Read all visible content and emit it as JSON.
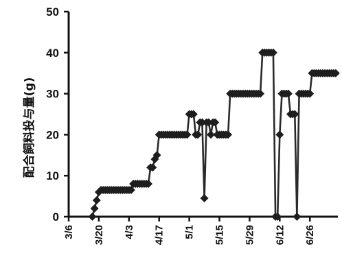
{
  "chart_data": {
    "type": "line",
    "title": "",
    "ylabel": "配合飼料投与量(g)",
    "xlabel": "",
    "x_tick_labels": [
      "3/6",
      "3/20",
      "4/3",
      "4/17",
      "5/1",
      "5/15",
      "5/29",
      "6/12",
      "6/26"
    ],
    "y_tick_labels": [
      "0",
      "10",
      "20",
      "30",
      "40",
      "50"
    ],
    "ylim": [
      0,
      50
    ],
    "xlim": [
      "3/6",
      "7/9"
    ],
    "grid": false,
    "legend": "none",
    "series": [
      {
        "color": "#1e1e1e",
        "marker": "diamond",
        "points": [
          {
            "x": "3/17",
            "y": 0
          },
          {
            "x": "3/18",
            "y": 2
          },
          {
            "x": "3/19",
            "y": 4
          },
          {
            "x": "3/20",
            "y": 6
          },
          {
            "x": "3/21",
            "y": 6.5
          },
          {
            "x": "3/22",
            "y": 6.5
          },
          {
            "x": "3/23",
            "y": 6.5
          },
          {
            "x": "3/24",
            "y": 6.5
          },
          {
            "x": "3/25",
            "y": 6.5
          },
          {
            "x": "3/26",
            "y": 6.5
          },
          {
            "x": "3/27",
            "y": 6.5
          },
          {
            "x": "3/28",
            "y": 6.5
          },
          {
            "x": "3/29",
            "y": 6.5
          },
          {
            "x": "3/30",
            "y": 6.5
          },
          {
            "x": "3/31",
            "y": 6.5
          },
          {
            "x": "4/1",
            "y": 6.5
          },
          {
            "x": "4/2",
            "y": 6.5
          },
          {
            "x": "4/3",
            "y": 6.5
          },
          {
            "x": "4/4",
            "y": 6.5
          },
          {
            "x": "4/5",
            "y": 8
          },
          {
            "x": "4/6",
            "y": 8
          },
          {
            "x": "4/7",
            "y": 8
          },
          {
            "x": "4/8",
            "y": 8
          },
          {
            "x": "4/9",
            "y": 8
          },
          {
            "x": "4/10",
            "y": 8
          },
          {
            "x": "4/11",
            "y": 8
          },
          {
            "x": "4/12",
            "y": 8
          },
          {
            "x": "4/13",
            "y": 12
          },
          {
            "x": "4/14",
            "y": 12
          },
          {
            "x": "4/15",
            "y": 14
          },
          {
            "x": "4/16",
            "y": 15
          },
          {
            "x": "4/17",
            "y": 20
          },
          {
            "x": "4/18",
            "y": 20
          },
          {
            "x": "4/19",
            "y": 20
          },
          {
            "x": "4/20",
            "y": 20
          },
          {
            "x": "4/21",
            "y": 20
          },
          {
            "x": "4/22",
            "y": 20
          },
          {
            "x": "4/23",
            "y": 20
          },
          {
            "x": "4/24",
            "y": 20
          },
          {
            "x": "4/25",
            "y": 20
          },
          {
            "x": "4/26",
            "y": 20
          },
          {
            "x": "4/27",
            "y": 20
          },
          {
            "x": "4/28",
            "y": 20
          },
          {
            "x": "4/29",
            "y": 20
          },
          {
            "x": "4/30",
            "y": 20
          },
          {
            "x": "5/1",
            "y": 25
          },
          {
            "x": "5/2",
            "y": 25
          },
          {
            "x": "5/3",
            "y": 25
          },
          {
            "x": "5/4",
            "y": 20
          },
          {
            "x": "5/5",
            "y": 20
          },
          {
            "x": "5/6",
            "y": 23
          },
          {
            "x": "5/7",
            "y": 23
          },
          {
            "x": "5/8",
            "y": 4.5
          },
          {
            "x": "5/9",
            "y": 23
          },
          {
            "x": "5/10",
            "y": 23
          },
          {
            "x": "5/11",
            "y": 20
          },
          {
            "x": "5/12",
            "y": 23
          },
          {
            "x": "5/13",
            "y": 23
          },
          {
            "x": "5/14",
            "y": 20
          },
          {
            "x": "5/15",
            "y": 20
          },
          {
            "x": "5/16",
            "y": 20
          },
          {
            "x": "5/17",
            "y": 20
          },
          {
            "x": "5/18",
            "y": 20
          },
          {
            "x": "5/19",
            "y": 20
          },
          {
            "x": "5/20",
            "y": 30
          },
          {
            "x": "5/21",
            "y": 30
          },
          {
            "x": "5/22",
            "y": 30
          },
          {
            "x": "5/23",
            "y": 30
          },
          {
            "x": "5/24",
            "y": 30
          },
          {
            "x": "5/25",
            "y": 30
          },
          {
            "x": "5/26",
            "y": 30
          },
          {
            "x": "5/27",
            "y": 30
          },
          {
            "x": "5/28",
            "y": 30
          },
          {
            "x": "5/29",
            "y": 30
          },
          {
            "x": "5/30",
            "y": 30
          },
          {
            "x": "5/31",
            "y": 30
          },
          {
            "x": "6/1",
            "y": 30
          },
          {
            "x": "6/2",
            "y": 30
          },
          {
            "x": "6/3",
            "y": 30
          },
          {
            "x": "6/4",
            "y": 40
          },
          {
            "x": "6/5",
            "y": 40
          },
          {
            "x": "6/6",
            "y": 40
          },
          {
            "x": "6/7",
            "y": 40
          },
          {
            "x": "6/8",
            "y": 40
          },
          {
            "x": "6/9",
            "y": 40
          },
          {
            "x": "6/10",
            "y": 0
          },
          {
            "x": "6/11",
            "y": 0
          },
          {
            "x": "6/12",
            "y": 20
          },
          {
            "x": "6/13",
            "y": 30
          },
          {
            "x": "6/14",
            "y": 30
          },
          {
            "x": "6/15",
            "y": 30
          },
          {
            "x": "6/16",
            "y": 30
          },
          {
            "x": "6/17",
            "y": 25
          },
          {
            "x": "6/18",
            "y": 25
          },
          {
            "x": "6/19",
            "y": 25
          },
          {
            "x": "6/20",
            "y": 0
          },
          {
            "x": "6/21",
            "y": 30
          },
          {
            "x": "6/22",
            "y": 30
          },
          {
            "x": "6/23",
            "y": 30
          },
          {
            "x": "6/24",
            "y": 30
          },
          {
            "x": "6/25",
            "y": 30
          },
          {
            "x": "6/26",
            "y": 30
          },
          {
            "x": "6/27",
            "y": 35
          },
          {
            "x": "6/28",
            "y": 35
          },
          {
            "x": "6/29",
            "y": 35
          },
          {
            "x": "6/30",
            "y": 35
          },
          {
            "x": "7/1",
            "y": 35
          },
          {
            "x": "7/2",
            "y": 35
          },
          {
            "x": "7/3",
            "y": 35
          },
          {
            "x": "7/4",
            "y": 35
          },
          {
            "x": "7/5",
            "y": 35
          },
          {
            "x": "7/6",
            "y": 35
          },
          {
            "x": "7/7",
            "y": 35
          },
          {
            "x": "7/8",
            "y": 35
          }
        ]
      }
    ]
  }
}
